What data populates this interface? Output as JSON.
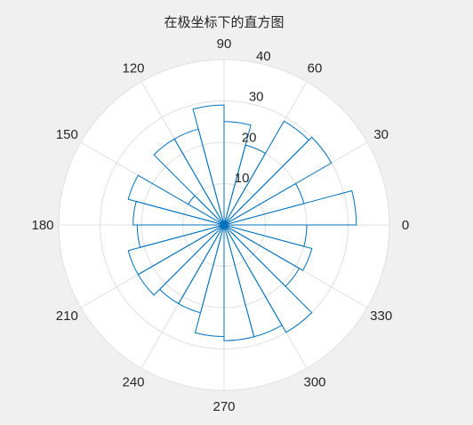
{
  "chart_data": {
    "type": "polar-histogram",
    "title": "在极坐标下的直方图",
    "theta_unit": "degrees",
    "r_range": [
      0,
      40
    ],
    "r_ticks": [
      10,
      20,
      30,
      40
    ],
    "theta_ticks": [
      0,
      30,
      60,
      90,
      120,
      150,
      180,
      210,
      240,
      270,
      300,
      330
    ],
    "bin_width_deg": 15,
    "bins": [
      {
        "theta_start": 0,
        "theta_end": 15,
        "count": 32
      },
      {
        "theta_start": 15,
        "theta_end": 30,
        "count": 20
      },
      {
        "theta_start": 30,
        "theta_end": 45,
        "count": 30
      },
      {
        "theta_start": 45,
        "theta_end": 60,
        "count": 29
      },
      {
        "theta_start": 60,
        "theta_end": 75,
        "count": 20
      },
      {
        "theta_start": 75,
        "theta_end": 90,
        "count": 25
      },
      {
        "theta_start": 90,
        "theta_end": 105,
        "count": 29
      },
      {
        "theta_start": 105,
        "theta_end": 120,
        "count": 24
      },
      {
        "theta_start": 120,
        "theta_end": 135,
        "count": 24
      },
      {
        "theta_start": 135,
        "theta_end": 150,
        "count": 10
      },
      {
        "theta_start": 150,
        "theta_end": 165,
        "count": 24
      },
      {
        "theta_start": 165,
        "theta_end": 180,
        "count": 22
      },
      {
        "theta_start": 180,
        "theta_end": 195,
        "count": 21
      },
      {
        "theta_start": 195,
        "theta_end": 210,
        "count": 24
      },
      {
        "theta_start": 210,
        "theta_end": 225,
        "count": 24
      },
      {
        "theta_start": 225,
        "theta_end": 240,
        "count": 22
      },
      {
        "theta_start": 240,
        "theta_end": 255,
        "count": 22
      },
      {
        "theta_start": 255,
        "theta_end": 270,
        "count": 27
      },
      {
        "theta_start": 270,
        "theta_end": 285,
        "count": 28
      },
      {
        "theta_start": 285,
        "theta_end": 300,
        "count": 28
      },
      {
        "theta_start": 300,
        "theta_end": 315,
        "count": 30
      },
      {
        "theta_start": 315,
        "theta_end": 330,
        "count": 21
      },
      {
        "theta_start": 330,
        "theta_end": 345,
        "count": 22
      },
      {
        "theta_start": 345,
        "theta_end": 360,
        "count": 20
      }
    ],
    "colors": {
      "edge": "#0072bd",
      "face": "#ffffff",
      "grid": "#dfdfdf",
      "background": "#f0f0f0",
      "text": "#262626"
    }
  }
}
